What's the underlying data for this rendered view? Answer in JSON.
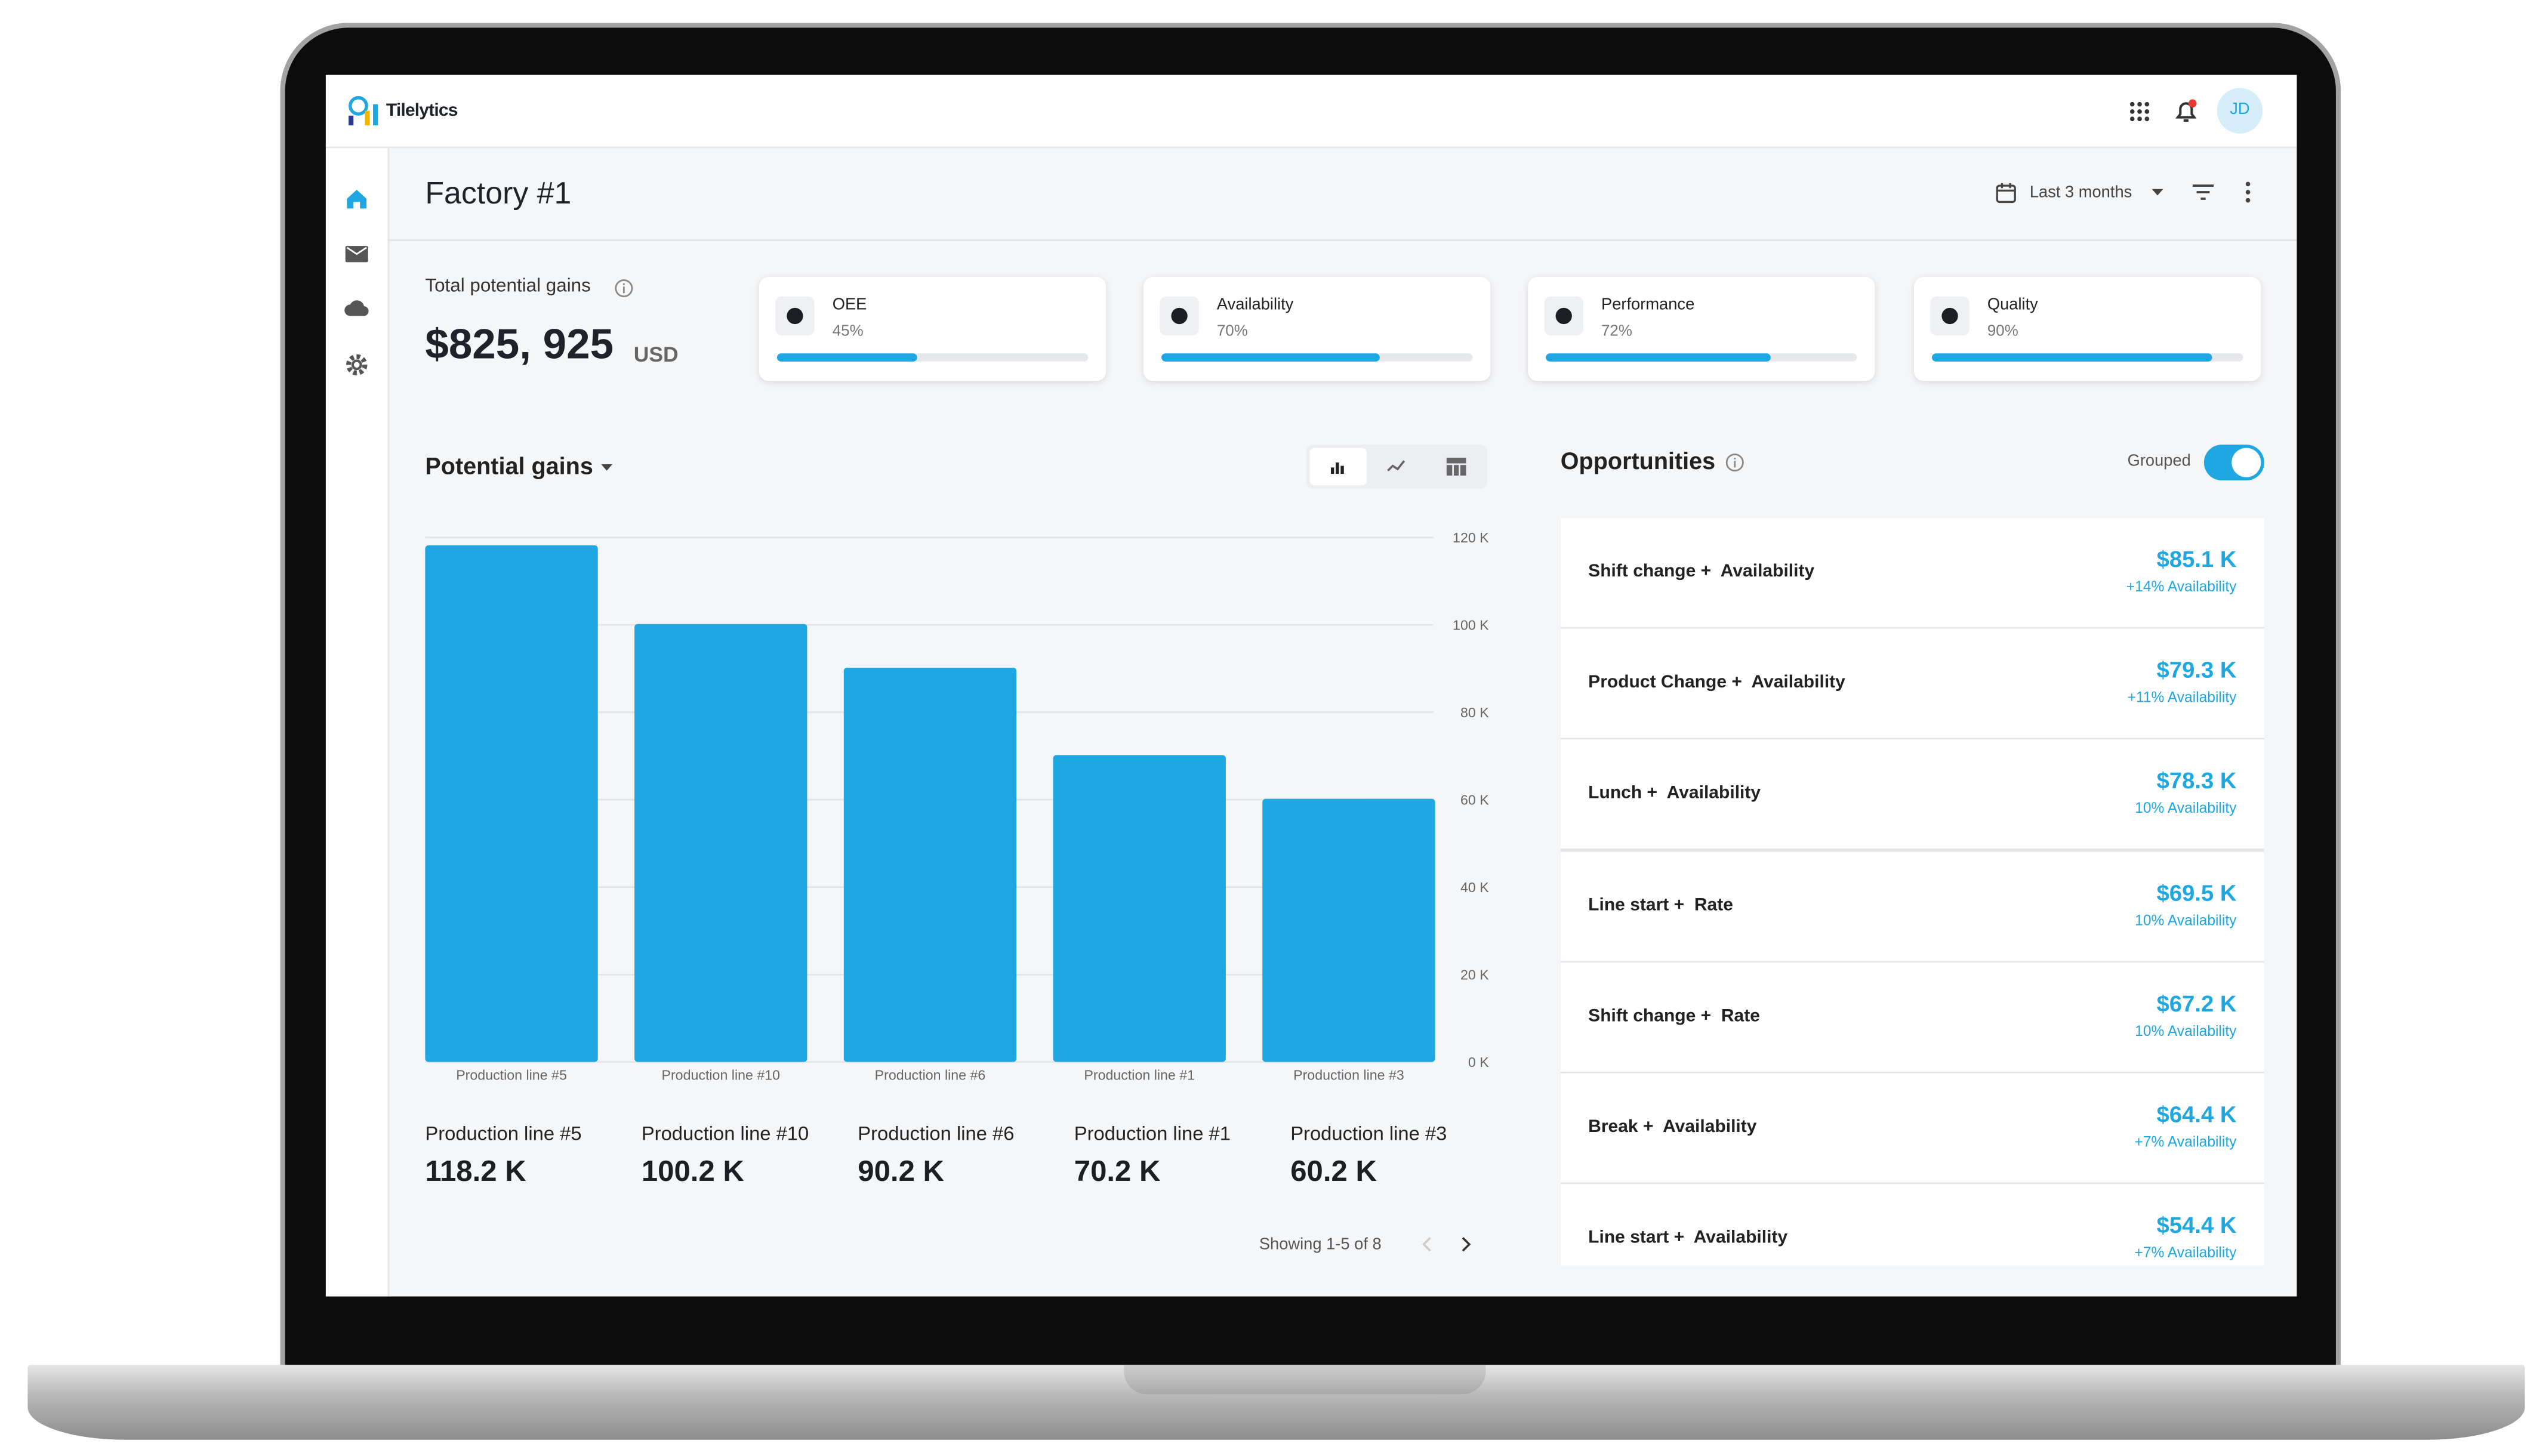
{
  "header": {
    "brand": "Tilelytics",
    "avatar": "JD"
  },
  "page": {
    "title": "Factory #1",
    "range": "Last 3 months"
  },
  "total": {
    "label": "Total potential gains",
    "amount": "$825, 925",
    "currency": "USD"
  },
  "kpis": [
    {
      "name": "OEE",
      "value": 45,
      "value_label": "45%"
    },
    {
      "name": "Availability",
      "value": 70,
      "value_label": "70%"
    },
    {
      "name": "Performance",
      "value": 72,
      "value_label": "72%"
    },
    {
      "name": "Quality",
      "value": 90,
      "value_label": "90%"
    }
  ],
  "chart": {
    "type": "bar",
    "title": "Potential gains",
    "categories": [
      "Production line #5",
      "Production line #10",
      "Production line #6",
      "Production line #1",
      "Production line #3"
    ],
    "values": [
      118.2,
      100.2,
      90.2,
      70.2,
      60.2
    ],
    "value_labels": [
      "118.2 K",
      "100.2 K",
      "90.2 K",
      "70.2 K",
      "60.2 K"
    ],
    "color": "#1ea7e0",
    "ylim": [
      0,
      120
    ],
    "yticks": [
      {
        "value": 0,
        "label": "0 K"
      },
      {
        "value": 20,
        "label": "20 K"
      },
      {
        "value": 40,
        "label": "40 K"
      },
      {
        "value": 60,
        "label": "60 K"
      },
      {
        "value": 80,
        "label": "80 K"
      },
      {
        "value": 100,
        "label": "100 K"
      },
      {
        "value": 120,
        "label": "120 K"
      }
    ],
    "grid": true
  },
  "pagination": "Showing 1-5 of 8",
  "opportunities": {
    "title": "Opportunities",
    "toggle_label": "Grouped",
    "items": [
      {
        "name": "Shift change +  Availability",
        "value": "$85.1 K",
        "change": "+14% Availability"
      },
      {
        "name": "Product Change +  Availability",
        "value": "$79.3 K",
        "change": "+11% Availability"
      },
      {
        "name": "Lunch +  Availability",
        "value": "$78.3 K",
        "change": "10% Availability"
      },
      {
        "name": "Line start +  Rate",
        "value": "$69.5 K",
        "change": "10% Availability"
      },
      {
        "name": "Shift change +  Rate",
        "value": "$67.2 K",
        "change": "10% Availability"
      },
      {
        "name": "Break +  Availability",
        "value": "$64.4 K",
        "change": "+7% Availability"
      },
      {
        "name": "Line start +  Availability",
        "value": "$54.4 K",
        "change": "+7% Availability"
      }
    ]
  }
}
